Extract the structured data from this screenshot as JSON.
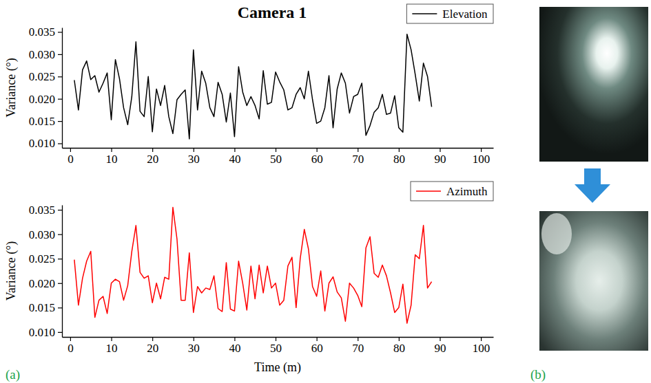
{
  "chart_data": [
    {
      "type": "line",
      "title": "Camera 1",
      "y_label": "Variance (°)",
      "x": [
        1,
        2,
        3,
        4,
        5,
        6,
        7,
        8,
        9,
        10,
        11,
        12,
        13,
        14,
        15,
        16,
        17,
        18,
        19,
        20,
        21,
        22,
        23,
        24,
        25,
        26,
        27,
        28,
        29,
        30,
        31,
        32,
        33,
        34,
        35,
        36,
        37,
        38,
        39,
        40,
        41,
        42,
        43,
        44,
        45,
        46,
        47,
        48,
        49,
        50,
        51,
        52,
        53,
        54,
        55,
        56,
        57,
        58,
        59,
        60,
        61,
        62,
        63,
        64,
        65,
        66,
        67,
        68,
        69,
        70,
        71,
        72,
        73,
        74,
        75,
        76,
        77,
        78,
        79,
        80,
        81,
        82,
        83,
        84,
        85,
        86,
        87,
        88
      ],
      "series": [
        {
          "name": "Elevation",
          "color": "#000000",
          "values": [
            0.0242,
            0.0175,
            0.0265,
            0.0285,
            0.0243,
            0.0252,
            0.0215,
            0.0235,
            0.0258,
            0.0153,
            0.0288,
            0.0245,
            0.018,
            0.0142,
            0.0205,
            0.0328,
            0.0172,
            0.016,
            0.025,
            0.0126,
            0.0222,
            0.0185,
            0.023,
            0.016,
            0.0122,
            0.0198,
            0.021,
            0.022,
            0.011,
            0.031,
            0.0175,
            0.0262,
            0.0235,
            0.018,
            0.016,
            0.0237,
            0.021,
            0.0148,
            0.0213,
            0.0115,
            0.0272,
            0.0215,
            0.0185,
            0.0205,
            0.0185,
            0.0155,
            0.0263,
            0.0188,
            0.0192,
            0.026,
            0.0238,
            0.022,
            0.0175,
            0.018,
            0.021,
            0.0225,
            0.02,
            0.0262,
            0.0198,
            0.0145,
            0.015,
            0.018,
            0.0252,
            0.0135,
            0.0222,
            0.0258,
            0.0235,
            0.0168,
            0.0205,
            0.021,
            0.0235,
            0.0118,
            0.014,
            0.017,
            0.018,
            0.021,
            0.0165,
            0.0168,
            0.0207,
            0.0135,
            0.0125,
            0.0345,
            0.031,
            0.0255,
            0.0195,
            0.028,
            0.025,
            0.0182
          ]
        }
      ],
      "xlim": [
        -2,
        103
      ],
      "xticks": [
        0,
        10,
        20,
        30,
        40,
        50,
        60,
        70,
        80,
        90,
        100
      ],
      "ylim": [
        0.009,
        0.036
      ],
      "yticks": [
        {
          "value": 0.01,
          "label": "0.010"
        },
        {
          "value": 0.015,
          "label": "0.015"
        },
        {
          "value": 0.02,
          "label": "0.020"
        },
        {
          "value": 0.025,
          "label": "0.025"
        },
        {
          "value": 0.03,
          "label": "0.030"
        },
        {
          "value": 0.035,
          "label": "0.035"
        }
      ],
      "legend": "upper right",
      "grid": false
    },
    {
      "type": "line",
      "y_label": "Variance (°)",
      "x_label": "Time (m)",
      "x": [
        1,
        2,
        3,
        4,
        5,
        6,
        7,
        8,
        9,
        10,
        11,
        12,
        13,
        14,
        15,
        16,
        17,
        18,
        19,
        20,
        21,
        22,
        23,
        24,
        25,
        26,
        27,
        28,
        29,
        30,
        31,
        32,
        33,
        34,
        35,
        36,
        37,
        38,
        39,
        40,
        41,
        42,
        43,
        44,
        45,
        46,
        47,
        48,
        49,
        50,
        51,
        52,
        53,
        54,
        55,
        56,
        57,
        58,
        59,
        60,
        61,
        62,
        63,
        64,
        65,
        66,
        67,
        68,
        69,
        70,
        71,
        72,
        73,
        74,
        75,
        76,
        77,
        78,
        79,
        80,
        81,
        82,
        83,
        84,
        85,
        86,
        87,
        88
      ],
      "series": [
        {
          "name": "Azimuth",
          "color": "#ff0000",
          "values": [
            0.0248,
            0.0155,
            0.021,
            0.0245,
            0.0265,
            0.013,
            0.0165,
            0.0173,
            0.0138,
            0.02,
            0.0208,
            0.0203,
            0.0165,
            0.0195,
            0.0265,
            0.0318,
            0.0222,
            0.021,
            0.0215,
            0.016,
            0.02,
            0.0168,
            0.0212,
            0.0208,
            0.0355,
            0.029,
            0.0165,
            0.0165,
            0.0262,
            0.014,
            0.0193,
            0.018,
            0.019,
            0.0187,
            0.0215,
            0.0148,
            0.0142,
            0.0242,
            0.0147,
            0.0143,
            0.0245,
            0.02,
            0.0145,
            0.0235,
            0.0168,
            0.0237,
            0.018,
            0.0235,
            0.019,
            0.02,
            0.0155,
            0.0165,
            0.0235,
            0.0253,
            0.015,
            0.025,
            0.031,
            0.027,
            0.0193,
            0.0173,
            0.0225,
            0.0143,
            0.02,
            0.0213,
            0.0182,
            0.017,
            0.0122,
            0.02,
            0.019,
            0.0175,
            0.0152,
            0.0272,
            0.0295,
            0.022,
            0.0212,
            0.0237,
            0.0215,
            0.018,
            0.014,
            0.015,
            0.0198,
            0.0118,
            0.0155,
            0.0258,
            0.025,
            0.0318,
            0.019,
            0.0203
          ]
        }
      ],
      "xlim": [
        -2,
        103
      ],
      "xticks": [
        0,
        10,
        20,
        30,
        40,
        50,
        60,
        70,
        80,
        90,
        100
      ],
      "ylim": [
        0.009,
        0.036
      ],
      "yticks": [
        {
          "value": 0.01,
          "label": "0.010"
        },
        {
          "value": 0.015,
          "label": "0.015"
        },
        {
          "value": 0.02,
          "label": "0.020"
        },
        {
          "value": 0.025,
          "label": "0.025"
        },
        {
          "value": 0.03,
          "label": "0.030"
        },
        {
          "value": 0.035,
          "label": "0.035"
        }
      ],
      "legend": "upper right",
      "grid": false
    }
  ],
  "panel_labels": [
    "(a)",
    "(b)"
  ]
}
